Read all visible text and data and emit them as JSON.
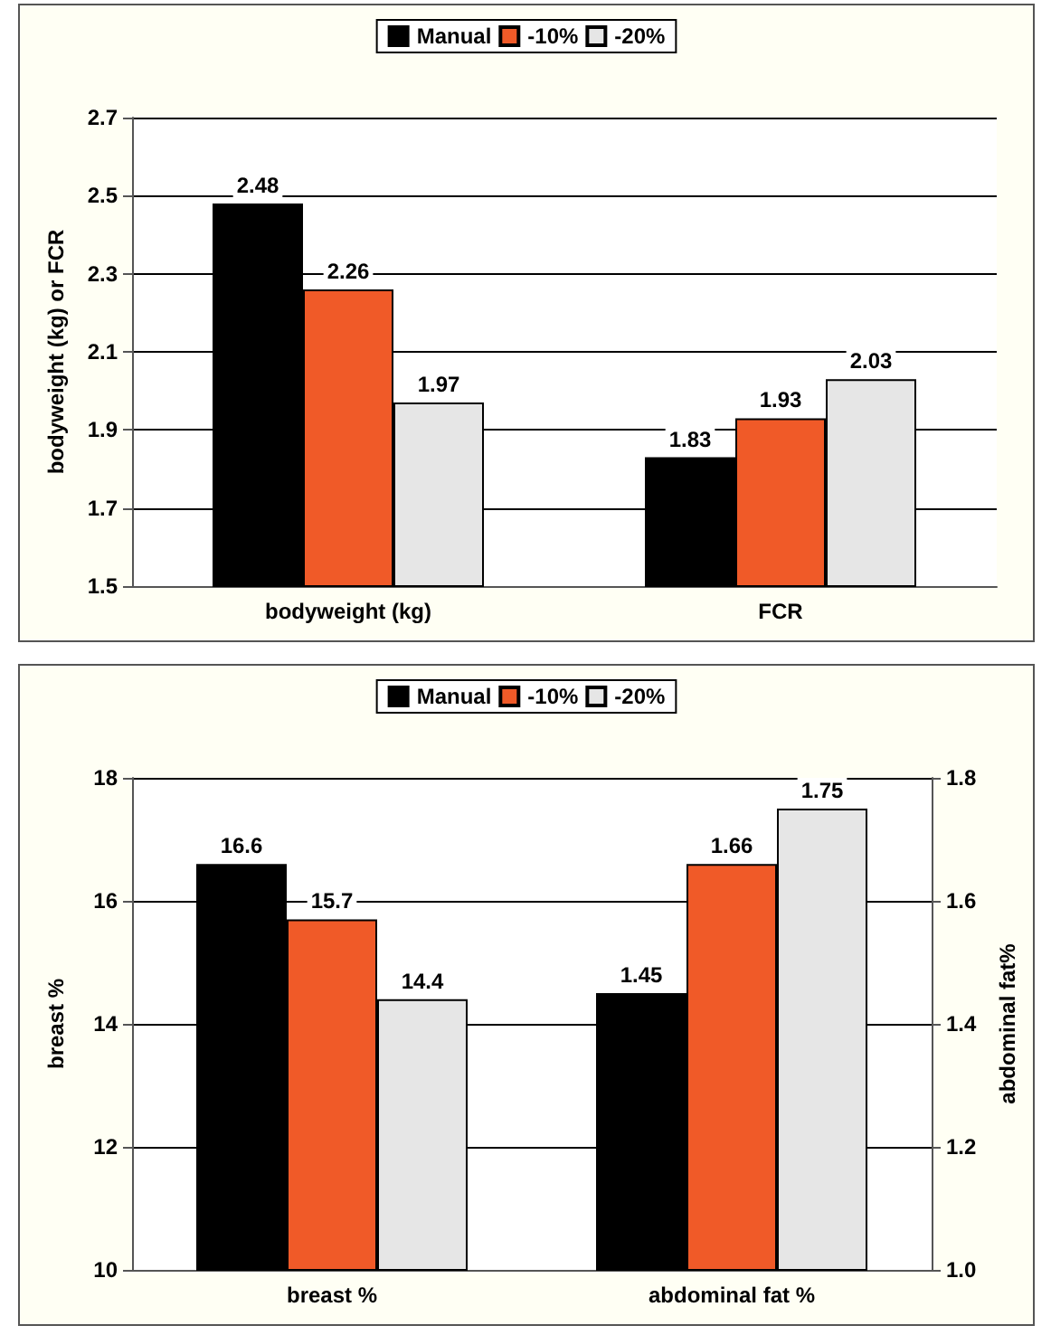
{
  "chart_data": [
    {
      "type": "bar",
      "ylabel": "bodyweight (kg) or FCR",
      "categories": [
        "bodyweight (kg)",
        "FCR"
      ],
      "series": [
        {
          "name": "Manual",
          "color": "#000000",
          "values": [
            2.48,
            1.83
          ]
        },
        {
          "name": "-10%",
          "color": "#f05a28",
          "values": [
            2.26,
            1.93
          ]
        },
        {
          "name": "-20%",
          "color": "#e6e6e6",
          "values": [
            1.97,
            2.03
          ]
        }
      ],
      "ylim": [
        1.5,
        2.7
      ],
      "yticks": [
        1.5,
        1.7,
        1.9,
        2.1,
        2.3,
        2.5,
        2.7
      ],
      "grid": "y",
      "legend": "top",
      "data_labels": true
    },
    {
      "type": "bar",
      "ylabel": "breast %",
      "y2label": "abdominal fat%",
      "categories": [
        "breast %",
        "abdominal fat %"
      ],
      "series": [
        {
          "name": "Manual",
          "color": "#000000",
          "values": [
            16.6,
            null
          ]
        },
        {
          "name": "-10%",
          "color": "#f05a28",
          "values": [
            15.7,
            null
          ]
        },
        {
          "name": "-20%",
          "color": "#e6e6e6",
          "values": [
            14.4,
            null
          ]
        },
        {
          "color": "#000000",
          "axis": "y2",
          "values": [
            null,
            1.45
          ]
        },
        {
          "color": "#f05a28",
          "axis": "y2",
          "values": [
            null,
            1.66
          ]
        },
        {
          "color": "#e6e6e6",
          "axis": "y2",
          "values": [
            null,
            1.75
          ]
        }
      ],
      "ylim": [
        10,
        18
      ],
      "yticks": [
        10,
        12,
        14,
        16,
        18
      ],
      "y2lim": [
        1,
        1.8
      ],
      "y2ticks": [
        {
          "value": 1,
          "label": "1.0"
        },
        1.2,
        1.4,
        1.6,
        1.8
      ],
      "grid": "y",
      "legend": "top",
      "data_labels": true
    }
  ]
}
